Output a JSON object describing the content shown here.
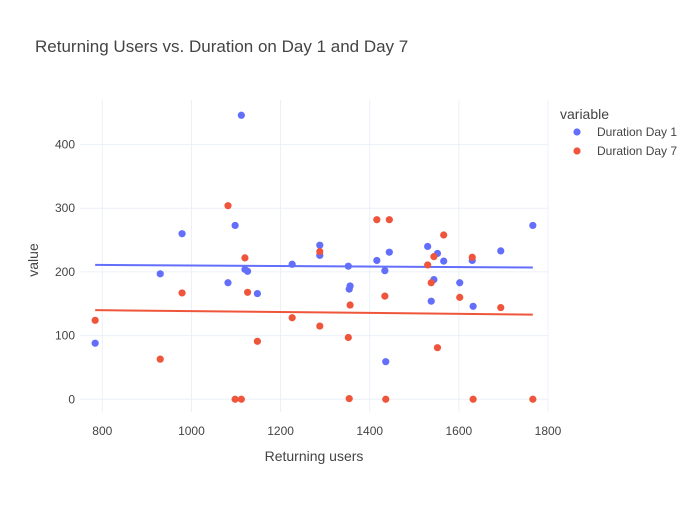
{
  "chart_data": {
    "type": "scatter",
    "title": "Returning Users vs. Duration on Day 1 and Day 7",
    "xlabel": "Returning users",
    "ylabel": "value",
    "xlim": [
      750,
      1800
    ],
    "ylim": [
      -20,
      470
    ],
    "x_ticks": [
      800,
      1000,
      1200,
      1400,
      1600,
      1800
    ],
    "y_ticks": [
      0,
      100,
      200,
      300,
      400
    ],
    "grid": true,
    "legend": {
      "title": "variable",
      "position": "top-right"
    },
    "series": [
      {
        "name": "Duration Day 1",
        "color": "#636efa",
        "x": [
          784,
          930,
          979,
          1082,
          1098,
          1112,
          1120,
          1126,
          1148,
          1226,
          1288,
          1288,
          1352,
          1354,
          1356,
          1416,
          1434,
          1436,
          1444,
          1530,
          1538,
          1544,
          1552,
          1566,
          1602,
          1630,
          1632,
          1694,
          1766
        ],
        "values": [
          88,
          197,
          260,
          183,
          273,
          446,
          204,
          201,
          166,
          212,
          242,
          226,
          209,
          173,
          178,
          218,
          202,
          59,
          231,
          240,
          154,
          188,
          229,
          217,
          183,
          218,
          146,
          233,
          273
        ],
        "trend": [
          211,
          207
        ]
      },
      {
        "name": "Duration Day 7",
        "color": "#ef553b",
        "x": [
          784,
          930,
          979,
          1082,
          1098,
          1112,
          1120,
          1126,
          1148,
          1226,
          1288,
          1288,
          1352,
          1354,
          1356,
          1416,
          1434,
          1436,
          1444,
          1530,
          1538,
          1544,
          1552,
          1566,
          1602,
          1630,
          1632,
          1694,
          1766
        ],
        "values": [
          124,
          63,
          167,
          304,
          0,
          0,
          222,
          168,
          91,
          128,
          115,
          232,
          97,
          1,
          148,
          282,
          162,
          0,
          282,
          211,
          183,
          224,
          81,
          258,
          160,
          223,
          0,
          144,
          0
        ],
        "trend": [
          140,
          133
        ]
      }
    ]
  }
}
